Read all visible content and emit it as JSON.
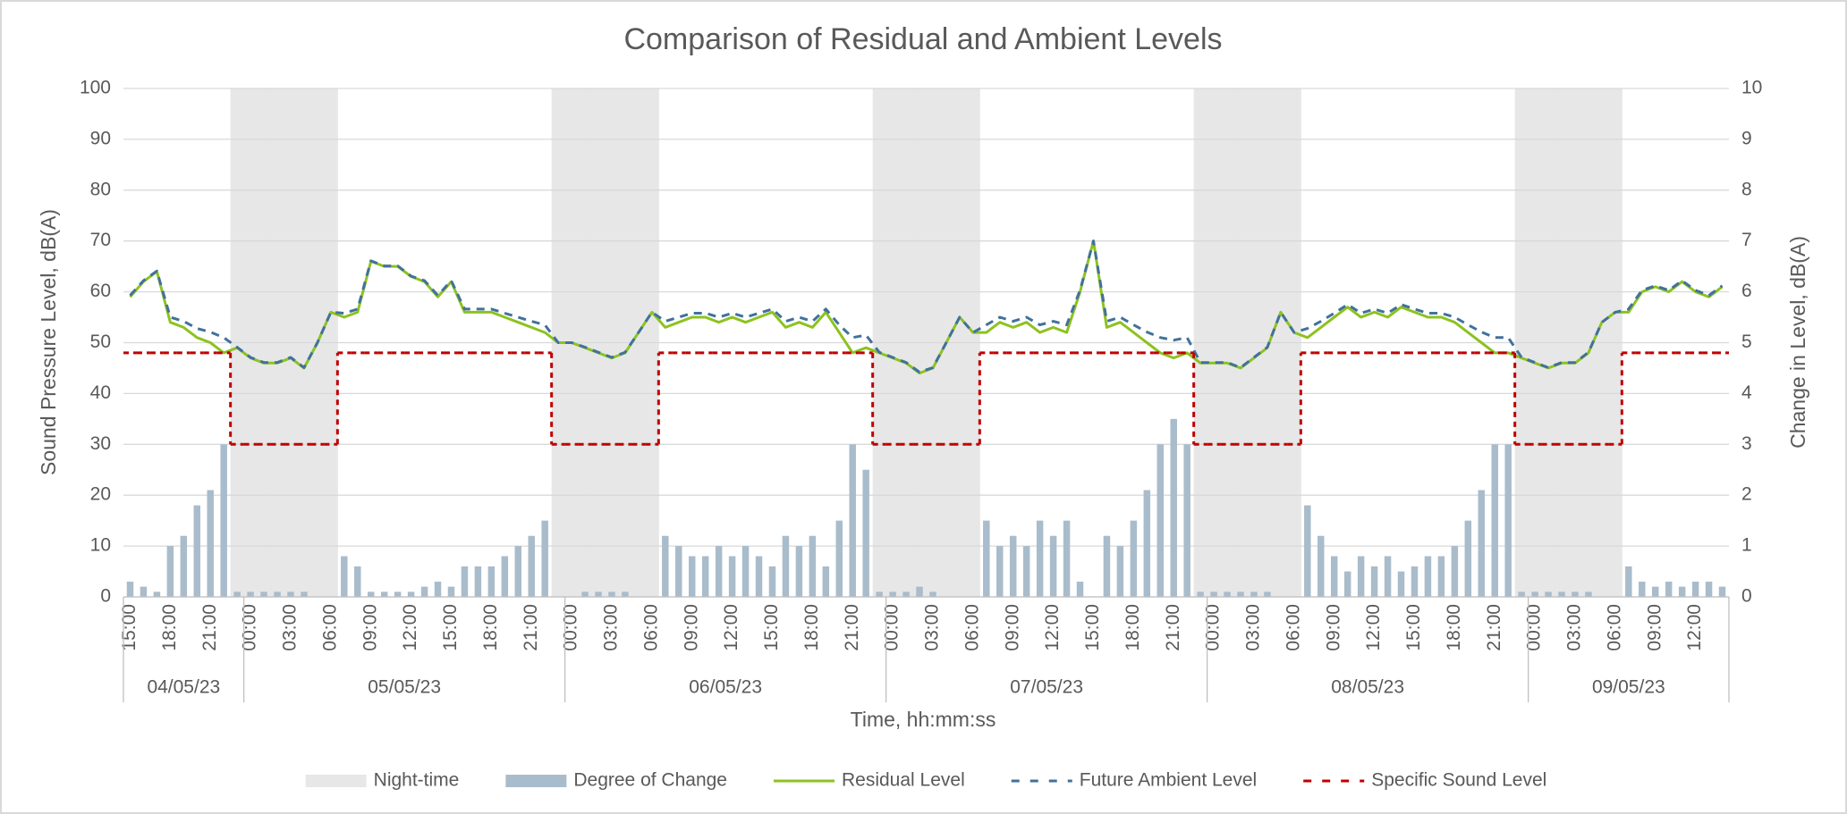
{
  "chart_data": {
    "type": "combo",
    "title": "Comparison of Residual and Ambient Levels",
    "x_label": "Time, hh:mm:ss",
    "y_label": "Sound Pressure Level, dB(A)",
    "y2_label": "Change in Level, dB(A)",
    "categories": [
      "15:00",
      null,
      null,
      "18:00",
      null,
      null,
      "21:00",
      null,
      null,
      "00:00",
      null,
      null,
      "03:00",
      null,
      null,
      "06:00",
      null,
      null,
      "09:00",
      null,
      null,
      "12:00",
      null,
      null,
      "15:00",
      null,
      null,
      "18:00",
      null,
      null,
      "21:00",
      null,
      null,
      "00:00",
      null,
      null,
      "03:00",
      null,
      null,
      "06:00",
      null,
      null,
      "09:00",
      null,
      null,
      "12:00",
      null,
      null,
      "15:00",
      null,
      null,
      "18:00",
      null,
      null,
      "21:00",
      null,
      null,
      "00:00",
      null,
      null,
      "03:00",
      null,
      null,
      "06:00",
      null,
      null,
      "09:00",
      null,
      null,
      "12:00",
      null,
      null,
      "15:00",
      null,
      null,
      "18:00",
      null,
      null,
      "21:00",
      null,
      null,
      "00:00",
      null,
      null,
      "03:00",
      null,
      null,
      "06:00",
      null,
      null,
      "09:00",
      null,
      null,
      "12:00",
      null,
      null,
      "15:00",
      null,
      null,
      "18:00",
      null,
      null,
      "21:00",
      null,
      null,
      "00:00",
      null,
      null,
      "03:00",
      null,
      null,
      "06:00",
      null,
      null,
      "09:00",
      null,
      null,
      "12:00",
      null,
      null
    ],
    "date_labels": [
      "04/05/23",
      "05/05/23",
      "06/05/23",
      "07/05/23",
      "08/05/23",
      "09/05/23"
    ],
    "ylim": [
      0,
      100
    ],
    "yticks": [
      0,
      10,
      20,
      30,
      40,
      50,
      60,
      70,
      80,
      90,
      100
    ],
    "y2lim": [
      0,
      10
    ],
    "y2ticks": [
      0,
      1,
      2,
      3,
      4,
      5,
      6,
      7,
      8,
      9,
      10
    ],
    "grid": true,
    "legend": "bottom",
    "series": [
      {
        "name": "Night-time",
        "kind": "column",
        "color": "#e7e7e7",
        "values": [
          null,
          null,
          null,
          null,
          null,
          null,
          null,
          null,
          100,
          100,
          100,
          100,
          100,
          100,
          100,
          100,
          null,
          null,
          null,
          null,
          null,
          null,
          null,
          null,
          null,
          null,
          null,
          null,
          null,
          null,
          null,
          null,
          100,
          100,
          100,
          100,
          100,
          100,
          100,
          100,
          null,
          null,
          null,
          null,
          null,
          null,
          null,
          null,
          null,
          null,
          null,
          null,
          null,
          null,
          null,
          null,
          100,
          100,
          100,
          100,
          100,
          100,
          100,
          100,
          null,
          null,
          null,
          null,
          null,
          null,
          null,
          null,
          null,
          null,
          null,
          null,
          null,
          null,
          null,
          null,
          100,
          100,
          100,
          100,
          100,
          100,
          100,
          100,
          null,
          null,
          null,
          null,
          null,
          null,
          null,
          null,
          null,
          null,
          null,
          null,
          null,
          null,
          null,
          null,
          100,
          100,
          100,
          100,
          100,
          100,
          100,
          100,
          null,
          null,
          null,
          null,
          null,
          null,
          null,
          null
        ]
      },
      {
        "name": "Degree of Change",
        "kind": "bar",
        "axis": "y2",
        "color": "#a9bccb",
        "values": [
          0.3,
          0.2,
          0.1,
          1.0,
          1.2,
          1.8,
          2.1,
          3.0,
          0.1,
          0.1,
          0.1,
          0.1,
          0.1,
          0.1,
          0.0,
          0.0,
          0.8,
          0.6,
          0.1,
          0.1,
          0.1,
          0.1,
          0.2,
          0.3,
          0.2,
          0.6,
          0.6,
          0.6,
          0.8,
          1.0,
          1.2,
          1.5,
          0.0,
          0.0,
          0.1,
          0.1,
          0.1,
          0.1,
          0.0,
          0.0,
          1.2,
          1.0,
          0.8,
          0.8,
          1.0,
          0.8,
          1.0,
          0.8,
          0.6,
          1.2,
          1.0,
          1.2,
          0.6,
          1.5,
          3.0,
          2.5,
          0.1,
          0.1,
          0.1,
          0.2,
          0.1,
          0.0,
          0.0,
          0.0,
          1.5,
          1.0,
          1.2,
          1.0,
          1.5,
          1.2,
          1.5,
          0.3,
          0.0,
          1.2,
          1.0,
          1.5,
          2.1,
          3.0,
          3.5,
          3.0,
          0.1,
          0.1,
          0.1,
          0.1,
          0.1,
          0.1,
          0.0,
          0.0,
          1.8,
          1.2,
          0.8,
          0.5,
          0.8,
          0.6,
          0.8,
          0.5,
          0.6,
          0.8,
          0.8,
          1.0,
          1.5,
          2.1,
          3.0,
          3.0,
          0.1,
          0.1,
          0.1,
          0.1,
          0.1,
          0.1,
          0.0,
          0.0,
          0.6,
          0.3,
          0.2,
          0.3,
          0.2,
          0.3,
          0.3,
          0.2
        ]
      },
      {
        "name": "Residual Level",
        "kind": "line",
        "color": "#8dc21f",
        "values": [
          59,
          62,
          64,
          54,
          53,
          51,
          50,
          48,
          49,
          47,
          46,
          46,
          47,
          45,
          50,
          56,
          55,
          56,
          66,
          65,
          65,
          63,
          62,
          59,
          62,
          56,
          56,
          56,
          55,
          54,
          53,
          52,
          50,
          50,
          49,
          48,
          47,
          48,
          52,
          56,
          53,
          54,
          55,
          55,
          54,
          55,
          54,
          55,
          56,
          53,
          54,
          53,
          56,
          52,
          48,
          49,
          48,
          47,
          46,
          44,
          45,
          50,
          55,
          52,
          52,
          54,
          53,
          54,
          52,
          53,
          52,
          60,
          70,
          53,
          54,
          52,
          50,
          48,
          47,
          48,
          46,
          46,
          46,
          45,
          47,
          49,
          56,
          52,
          51,
          53,
          55,
          57,
          55,
          56,
          55,
          57,
          56,
          55,
          55,
          54,
          52,
          50,
          48,
          48,
          47,
          46,
          45,
          46,
          46,
          48,
          54,
          56,
          56,
          60,
          61,
          60,
          62,
          60,
          59,
          61
        ]
      },
      {
        "name": "Future Ambient Level",
        "kind": "line",
        "dashed": true,
        "color": "#41719c",
        "values": [
          59.3,
          62.2,
          64.1,
          55.0,
          54.2,
          52.8,
          52.1,
          51.0,
          49.1,
          47.1,
          46.1,
          46.1,
          47.1,
          45.1,
          50.0,
          56.0,
          55.8,
          56.6,
          66.1,
          65.1,
          65.1,
          63.1,
          62.2,
          59.3,
          62.2,
          56.6,
          56.6,
          56.6,
          55.8,
          55.0,
          54.2,
          53.5,
          50.0,
          50.0,
          49.1,
          48.1,
          47.1,
          48.1,
          52.0,
          56.0,
          54.2,
          55.0,
          55.8,
          55.8,
          55.0,
          55.8,
          55.0,
          55.8,
          56.6,
          54.2,
          55.0,
          54.2,
          56.6,
          53.5,
          51.0,
          51.5,
          48.1,
          47.1,
          46.1,
          44.2,
          45.1,
          50.0,
          55.0,
          52.0,
          53.5,
          55.0,
          54.2,
          55.0,
          53.5,
          54.2,
          53.5,
          60.3,
          70.0,
          54.2,
          55.0,
          53.5,
          52.1,
          51.0,
          50.5,
          51.0,
          46.1,
          46.1,
          46.1,
          45.1,
          47.1,
          49.1,
          56.0,
          52.0,
          52.8,
          54.2,
          55.8,
          57.5,
          55.8,
          56.6,
          55.8,
          57.5,
          56.6,
          55.8,
          55.8,
          55.0,
          53.5,
          52.1,
          51.0,
          51.0,
          47.1,
          46.1,
          45.1,
          46.1,
          46.1,
          48.1,
          54.0,
          56.0,
          56.6,
          60.3,
          61.2,
          60.3,
          62.2,
          60.3,
          59.3,
          61.2
        ]
      },
      {
        "name": "Specific Sound Level",
        "kind": "step",
        "dashed": true,
        "color": "#c00000",
        "values": [
          48,
          48,
          48,
          48,
          48,
          48,
          48,
          48,
          30,
          30,
          30,
          30,
          30,
          30,
          30,
          30,
          48,
          48,
          48,
          48,
          48,
          48,
          48,
          48,
          48,
          48,
          48,
          48,
          48,
          48,
          48,
          48,
          30,
          30,
          30,
          30,
          30,
          30,
          30,
          30,
          48,
          48,
          48,
          48,
          48,
          48,
          48,
          48,
          48,
          48,
          48,
          48,
          48,
          48,
          48,
          48,
          30,
          30,
          30,
          30,
          30,
          30,
          30,
          30,
          48,
          48,
          48,
          48,
          48,
          48,
          48,
          48,
          48,
          48,
          48,
          48,
          48,
          48,
          48,
          48,
          30,
          30,
          30,
          30,
          30,
          30,
          30,
          30,
          48,
          48,
          48,
          48,
          48,
          48,
          48,
          48,
          48,
          48,
          48,
          48,
          48,
          48,
          48,
          48,
          30,
          30,
          30,
          30,
          30,
          30,
          30,
          30,
          48,
          48,
          48,
          48,
          48,
          48,
          48,
          48
        ]
      }
    ]
  }
}
